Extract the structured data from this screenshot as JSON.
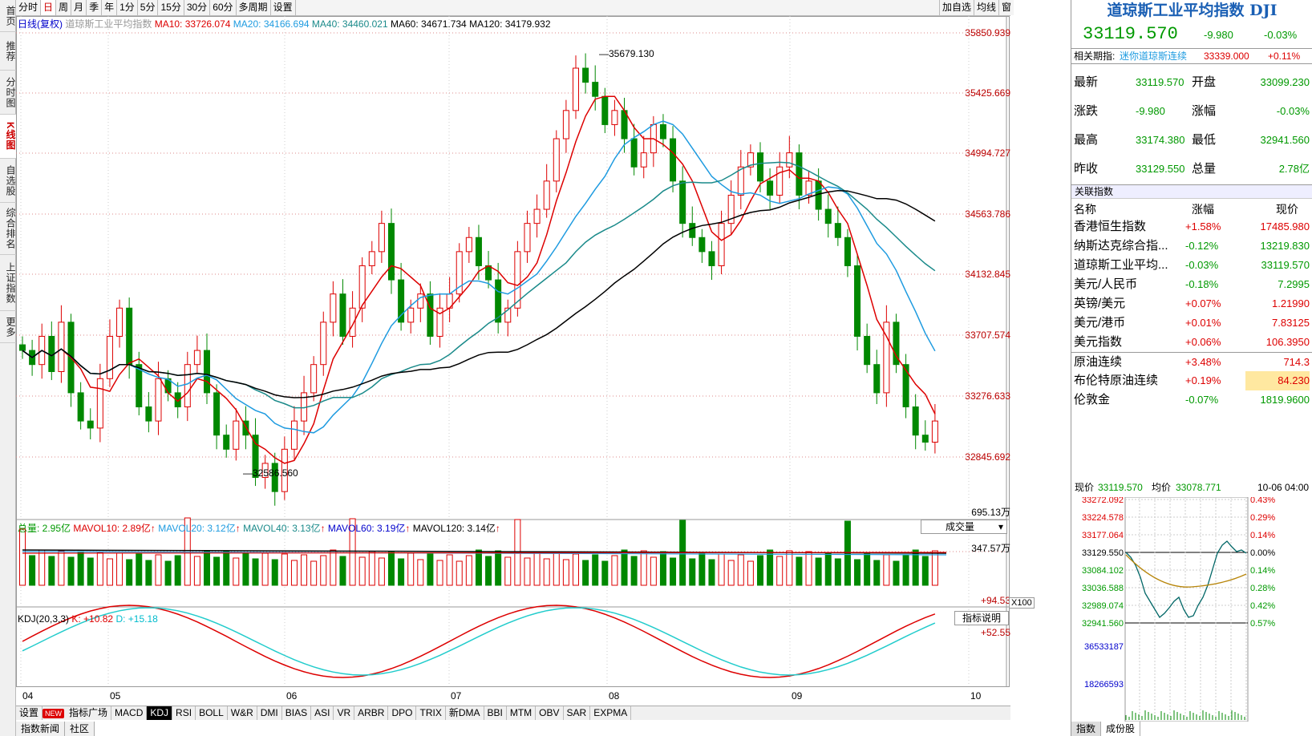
{
  "left_rail": [
    "首页",
    "推荐",
    "分时图",
    "K线图",
    "自选股",
    "综合排名",
    "上证指数",
    "更多"
  ],
  "left_rail_active": 3,
  "period_tabs": [
    "分时",
    "日",
    "周",
    "月",
    "季",
    "年",
    "1分",
    "5分",
    "15分",
    "30分",
    "60分",
    "多周期",
    "设置"
  ],
  "period_active": 1,
  "top_buttons": [
    "加自选",
    "均线",
    "窗"
  ],
  "ma_legend": {
    "type": "日线(复权)",
    "name": "道琼斯工业平均指数",
    "ma10": "MA10: 33726.074",
    "ma20": "MA20: 34166.694",
    "ma40": "MA40: 34460.021",
    "ma60": "MA60: 34671.734",
    "ma120": "MA120: 34179.932"
  },
  "price_axis": [
    "35850.939",
    "35425.669",
    "34994.727",
    "34563.786",
    "34132.845",
    "33707.574",
    "33276.633",
    "32845.692"
  ],
  "high_mark": "35679.130",
  "low_mark": "32586.560",
  "vol_legend": {
    "total": "总量: 2.95亿",
    "mavol10": "MAVOL10: 2.89亿",
    "mavol20": "MAVOL20: 3.12亿",
    "mavol40": "MAVOL40: 3.13亿",
    "mavol60": "MAVOL60: 3.19亿",
    "mavol120": "MAVOL120: 3.14亿",
    "up_arrow": "↑"
  },
  "vol_axis": [
    "695.13万",
    "347.57万"
  ],
  "vol_select": "成交量",
  "x100": "X100",
  "kdj_legend": {
    "main": "KDJ(20,3,3)",
    "k": "K: +10.82",
    "d": "D: +15.18"
  },
  "kdj_axis": [
    "+94.53",
    "+52.55"
  ],
  "kdj_explain": "指标说明",
  "x_axis": [
    "04",
    "05",
    "06",
    "07",
    "08",
    "09",
    "10"
  ],
  "indicator_tabs": [
    "设置",
    "NEW",
    "指标广场",
    "MACD",
    "KDJ",
    "RSI",
    "BOLL",
    "W&R",
    "DMI",
    "BIAS",
    "ASI",
    "VR",
    "ARBR",
    "DPO",
    "TRIX",
    "新DMA",
    "BBI",
    "MTM",
    "OBV",
    "SAR",
    "EXPMA"
  ],
  "indicator_active": "KDJ",
  "bottom_tabs": [
    "指数新闻",
    "社区"
  ],
  "right_panel": {
    "title": "道琼斯工业平均指数 DJI",
    "price": "33119.570",
    "change": "-9.980",
    "change_pct": "-0.03%",
    "related_label": "相关期指:",
    "related_name": "迷你道琼斯连续",
    "related_price": "33339.000",
    "related_pct": "+0.11%",
    "quote": [
      {
        "l1": "最新",
        "v1": "33119.570",
        "l2": "开盘",
        "v2": "33099.230"
      },
      {
        "l1": "涨跌",
        "v1": "-9.980",
        "l2": "涨幅",
        "v2": "-0.03%"
      },
      {
        "l1": "最高",
        "v1": "33174.380",
        "l2": "最低",
        "v2": "32941.560"
      },
      {
        "l1": "昨收",
        "v1": "33129.550",
        "l2": "总量",
        "v2": "2.78亿"
      }
    ],
    "related_index_head": "关联指数",
    "col_name": "名称",
    "col_pct": "涨幅",
    "col_price": "现价",
    "indices": [
      {
        "name": "香港恒生指数",
        "pct": "+1.58%",
        "price": "17485.980"
      },
      {
        "name": "纳斯达克综合指...",
        "pct": "-0.12%",
        "price": "13219.830"
      },
      {
        "name": "道琼斯工业平均...",
        "pct": "-0.03%",
        "price": "33119.570"
      },
      {
        "name": "美元/人民币",
        "pct": "-0.18%",
        "price": "7.2995"
      },
      {
        "name": "英镑/美元",
        "pct": "+0.07%",
        "price": "1.21990"
      },
      {
        "name": "美元/港币",
        "pct": "+0.01%",
        "price": "7.83125"
      },
      {
        "name": "美元指数",
        "pct": "+0.06%",
        "price": "106.3950"
      },
      {
        "name": "原油连续",
        "pct": "+3.48%",
        "price": "714.3"
      },
      {
        "name": "布伦特原油连续",
        "pct": "+0.19%",
        "price": "84.230"
      },
      {
        "name": "伦敦金",
        "pct": "-0.07%",
        "price": "1819.9600"
      }
    ],
    "mini": {
      "label_price": "现价",
      "price": "33119.570",
      "label_avg": "均价",
      "avg": "33078.771",
      "time": "10-06 04:00",
      "left_axis": [
        "33272.092",
        "33224.578",
        "33177.064",
        "33129.550",
        "33084.102",
        "33036.588",
        "32989.074",
        "32941.560"
      ],
      "right_axis": [
        "0.43%",
        "0.29%",
        "0.14%",
        "0.00%",
        "0.14%",
        "0.28%",
        "0.42%",
        "0.57%"
      ],
      "vol_axis": [
        "36533187",
        "18266593"
      ]
    },
    "bottom_tabs": [
      "指数",
      "成份股"
    ]
  }
}
